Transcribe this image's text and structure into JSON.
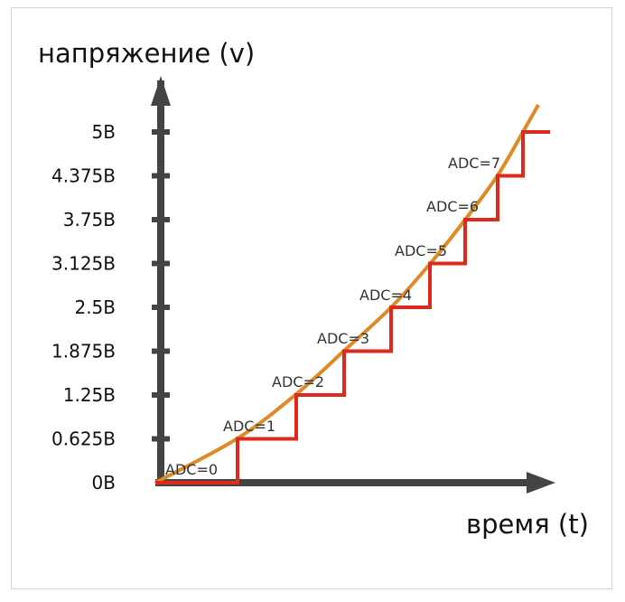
{
  "chart_data": {
    "type": "line",
    "title": "",
    "ylabel": "напряжение (v)",
    "xlabel": "время (t)",
    "y_ticks": [
      "0B",
      "0.625B",
      "1.25B",
      "1.875B",
      "2.5B",
      "3.125B",
      "3.75B",
      "4.375B",
      "5B"
    ],
    "y_values": [
      0,
      0.625,
      1.25,
      1.875,
      2.5,
      3.125,
      3.75,
      4.375,
      5
    ],
    "ylim": [
      0,
      5
    ],
    "step_labels": [
      "ADC=0",
      "ADC=1",
      "ADC=2",
      "ADC=3",
      "ADC=4",
      "ADC=5",
      "ADC=6",
      "ADC=7"
    ],
    "series": [
      {
        "type": "step",
        "color": "#dd2a1f",
        "y": [
          0,
          0.625,
          1.25,
          1.875,
          2.5,
          3.125,
          3.75,
          4.375,
          5
        ]
      },
      {
        "type": "curve",
        "color": "#e08a26"
      }
    ]
  }
}
